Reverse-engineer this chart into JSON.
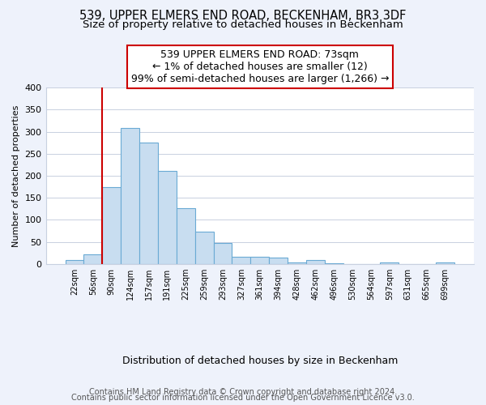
{
  "title": "539, UPPER ELMERS END ROAD, BECKENHAM, BR3 3DF",
  "subtitle": "Size of property relative to detached houses in Beckenham",
  "xlabel": "Distribution of detached houses by size in Beckenham",
  "ylabel": "Number of detached properties",
  "bar_labels": [
    "22sqm",
    "56sqm",
    "90sqm",
    "124sqm",
    "157sqm",
    "191sqm",
    "225sqm",
    "259sqm",
    "293sqm",
    "327sqm",
    "361sqm",
    "394sqm",
    "428sqm",
    "462sqm",
    "496sqm",
    "530sqm",
    "564sqm",
    "597sqm",
    "631sqm",
    "665sqm",
    "699sqm"
  ],
  "bar_heights": [
    8,
    22,
    174,
    309,
    276,
    211,
    126,
    73,
    48,
    16,
    16,
    15,
    4,
    9,
    1,
    0,
    0,
    3,
    0,
    0,
    4
  ],
  "bar_color": "#c8ddf0",
  "bar_edge_color": "#6aaad4",
  "annotation_line1": "539 UPPER ELMERS END ROAD: 73sqm",
  "annotation_line2": "← 1% of detached houses are smaller (12)",
  "annotation_line3": "99% of semi-detached houses are larger (1,266) →",
  "annotation_box_edge_color": "#cc0000",
  "vline_color": "#cc0000",
  "vline_x_index": 2,
  "ylim": [
    0,
    400
  ],
  "yticks": [
    0,
    50,
    100,
    150,
    200,
    250,
    300,
    350,
    400
  ],
  "footer_line1": "Contains HM Land Registry data © Crown copyright and database right 2024.",
  "footer_line2": "Contains public sector information licensed under the Open Government Licence v3.0.",
  "bg_color": "#eef2fb",
  "plot_bg_color": "#ffffff",
  "grid_color": "#c8d0e0",
  "title_fontsize": 10.5,
  "subtitle_fontsize": 9.5,
  "annotation_fontsize": 9,
  "ylabel_fontsize": 8,
  "xtick_fontsize": 7,
  "ytick_fontsize": 8,
  "footer_fontsize": 7,
  "xlabel_fontsize": 9
}
